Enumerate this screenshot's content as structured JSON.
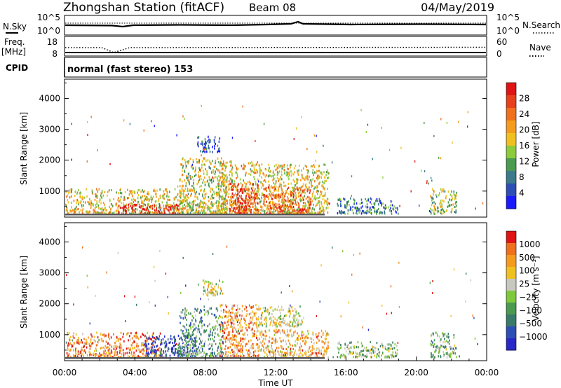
{
  "header": {
    "station": "Zhongshan Station (fitACF)",
    "beam": "Beam 08",
    "date": "04/May/2019"
  },
  "noise_panel": {
    "left_label": "N.Sky",
    "right_label": "N.Search",
    "left_ticks": [
      "10^5",
      "10^0"
    ],
    "right_ticks": [
      "10^5",
      "10^0"
    ]
  },
  "freq_panel": {
    "left_label_line1": "Freq.",
    "left_label_line2": "[MHz]",
    "right_label": "Nave",
    "left_ticks": [
      "18",
      "8"
    ],
    "right_ticks": [
      "60",
      "0"
    ]
  },
  "cpid_panel": {
    "label": "CPID",
    "text": "normal (fast stereo) 153"
  },
  "chart_data": [
    {
      "type": "heatmap",
      "name": "power",
      "ylabel": "Slant Range [km]",
      "ylim": [
        180,
        4600
      ],
      "yticks": [
        1000,
        2000,
        3000,
        4000
      ],
      "xlim": [
        0,
        24
      ],
      "colorbar": {
        "label": "Power [dB]",
        "tick_labels": [
          "4",
          "8",
          "12",
          "16",
          "20",
          "24",
          "28"
        ],
        "colors": [
          "#1a1aff",
          "#2d4fb5",
          "#3a7a8a",
          "#4a9a50",
          "#8ccc3c",
          "#f0c020",
          "#f59b1e",
          "#f0701c",
          "#e8401c",
          "#e01414"
        ]
      },
      "clusters": [
        {
          "t0": 0.0,
          "t1": 7.0,
          "r0": 300,
          "r1": 1100,
          "level": 0.55
        },
        {
          "t0": 3.0,
          "t1": 6.5,
          "r0": 300,
          "r1": 600,
          "level": 0.95
        },
        {
          "t0": 6.5,
          "t1": 9.2,
          "r0": 300,
          "r1": 2100,
          "level": 0.5
        },
        {
          "t0": 7.5,
          "t1": 8.8,
          "r0": 2300,
          "r1": 2800,
          "level": 0.15
        },
        {
          "t0": 8.6,
          "t1": 11.0,
          "r0": 300,
          "r1": 2000,
          "level": 0.6
        },
        {
          "t0": 9.3,
          "t1": 11.0,
          "r0": 300,
          "r1": 1300,
          "level": 0.85
        },
        {
          "t0": 11.0,
          "t1": 15.0,
          "r0": 300,
          "r1": 1900,
          "level": 0.55
        },
        {
          "t0": 11.3,
          "t1": 14.0,
          "r0": 300,
          "r1": 1200,
          "level": 0.8
        },
        {
          "t0": 15.5,
          "t1": 19.0,
          "r0": 300,
          "r1": 800,
          "level": 0.25
        },
        {
          "t0": 20.8,
          "t1": 22.3,
          "r0": 300,
          "r1": 1100,
          "level": 0.45
        }
      ]
    },
    {
      "type": "heatmap",
      "name": "velocity",
      "ylabel": "Slant Range [km]",
      "ylim": [
        180,
        4600
      ],
      "yticks": [
        1000,
        2000,
        3000,
        4000
      ],
      "xlim": [
        0,
        24
      ],
      "xticks": [
        "00:00",
        "04:00",
        "08:00",
        "12:00",
        "16:00",
        "20:00",
        "00:00"
      ],
      "xlabel": "Time UT",
      "colorbar": {
        "label": "Velocity [m s⁻¹]",
        "tick_labels": [
          "1000",
          "500",
          "100",
          "25",
          "−25",
          "−100",
          "−500",
          "−1000"
        ],
        "colors": [
          "#2828c8",
          "#2d4fb5",
          "#3a7a6a",
          "#4a9a50",
          "#7ec83c",
          "#c8c8c0",
          "#f0c020",
          "#f59b1e",
          "#f0701c",
          "#e01414"
        ]
      },
      "clusters": [
        {
          "t0": 0.0,
          "t1": 5.5,
          "r0": 300,
          "r1": 1100,
          "level": 0.8
        },
        {
          "t0": 4.5,
          "t1": 7.5,
          "r0": 300,
          "r1": 1000,
          "level": 0.1
        },
        {
          "t0": 6.5,
          "t1": 9.0,
          "r0": 300,
          "r1": 1900,
          "level": 0.35
        },
        {
          "t0": 7.8,
          "t1": 9.0,
          "r0": 2300,
          "r1": 2800,
          "level": 0.55
        },
        {
          "t0": 8.8,
          "t1": 11.0,
          "r0": 300,
          "r1": 2000,
          "level": 0.75
        },
        {
          "t0": 11.0,
          "t1": 13.5,
          "r0": 1300,
          "r1": 1950,
          "level": 0.55
        },
        {
          "t0": 11.0,
          "t1": 15.0,
          "r0": 300,
          "r1": 1200,
          "level": 0.7
        },
        {
          "t0": 15.5,
          "t1": 19.0,
          "r0": 300,
          "r1": 800,
          "level": 0.45
        },
        {
          "t0": 20.8,
          "t1": 22.3,
          "r0": 300,
          "r1": 1100,
          "level": 0.4
        }
      ]
    }
  ]
}
